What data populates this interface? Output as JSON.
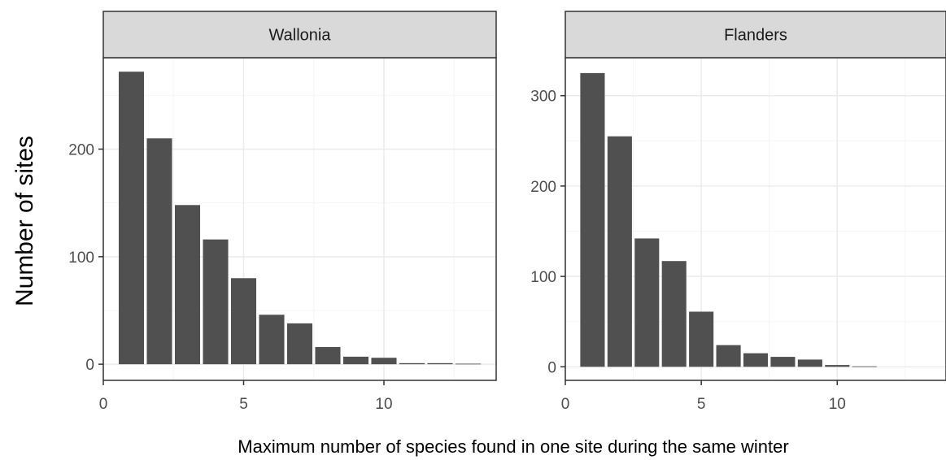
{
  "chart_data": {
    "type": "bar",
    "ylabel": "Number of sites",
    "xlabel": "Maximum number of species found in one site during the same winter",
    "colors": {
      "bar": "#505050",
      "strip": "#d9d9d9",
      "panel_border": "#333333",
      "grid_major": "#ebebeb",
      "grid_minor": "#f5f5f5",
      "tick_text": "#4d4d4d"
    },
    "panels": [
      {
        "title": "Wallonia",
        "x": [
          1,
          2,
          3,
          4,
          5,
          6,
          7,
          8,
          9,
          10,
          11,
          12,
          13
        ],
        "values": [
          272,
          210,
          148,
          116,
          80,
          46,
          38,
          16,
          7,
          6,
          1,
          1,
          0.5
        ],
        "xticks": [
          "0",
          "5",
          "10"
        ],
        "yticks": [
          "0",
          "100",
          "200"
        ],
        "xlim": [
          0,
          14
        ],
        "ylim": [
          -15,
          285
        ]
      },
      {
        "title": "Flanders",
        "x": [
          1,
          2,
          3,
          4,
          5,
          6,
          7,
          8,
          9,
          10,
          11
        ],
        "values": [
          325,
          255,
          142,
          117,
          61,
          24,
          15,
          11,
          8,
          2,
          0.5
        ],
        "xticks": [
          "0",
          "5",
          "10"
        ],
        "yticks": [
          "0",
          "100",
          "200",
          "300"
        ],
        "xlim": [
          0,
          14
        ],
        "ylim": [
          -15,
          342
        ]
      }
    ]
  }
}
